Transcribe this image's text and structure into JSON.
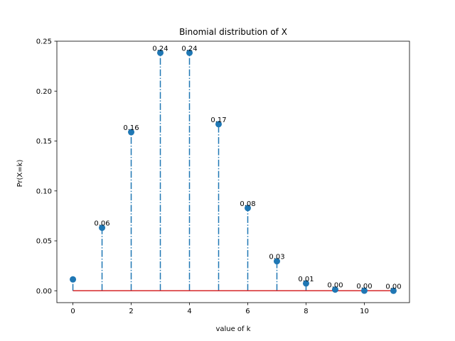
{
  "chart_data": {
    "type": "stem",
    "title": "Binomial distribution of X",
    "xlabel": "value of k",
    "ylabel": "Pr(X=k)",
    "x": [
      0,
      1,
      2,
      3,
      4,
      5,
      6,
      7,
      8,
      9,
      10,
      11
    ],
    "values": [
      0.0114,
      0.0631,
      0.1589,
      0.2384,
      0.2384,
      0.1669,
      0.0829,
      0.0296,
      0.0074,
      0.0012,
      0.0001,
      0.0
    ],
    "data_labels": [
      "",
      "0.06",
      "0.16",
      "0.24",
      "0.24",
      "0.17",
      "0.08",
      "0.03",
      "0.01",
      "0.00",
      "0.00",
      "0.00"
    ],
    "xlim": [
      -0.55,
      11.55
    ],
    "ylim": [
      -0.0119,
      0.25
    ],
    "xticks": [
      0,
      2,
      4,
      6,
      8,
      10
    ],
    "xtick_labels": [
      "0",
      "2",
      "4",
      "6",
      "8",
      "10"
    ],
    "yticks": [
      0.0,
      0.05,
      0.1,
      0.15,
      0.2,
      0.25
    ],
    "ytick_labels": [
      "0.00",
      "0.05",
      "0.10",
      "0.15",
      "0.20",
      "0.25"
    ],
    "grid": false,
    "colors": {
      "marker": "#1f77b4",
      "stem": "#1f77b4",
      "baseline": "#d62728"
    }
  }
}
